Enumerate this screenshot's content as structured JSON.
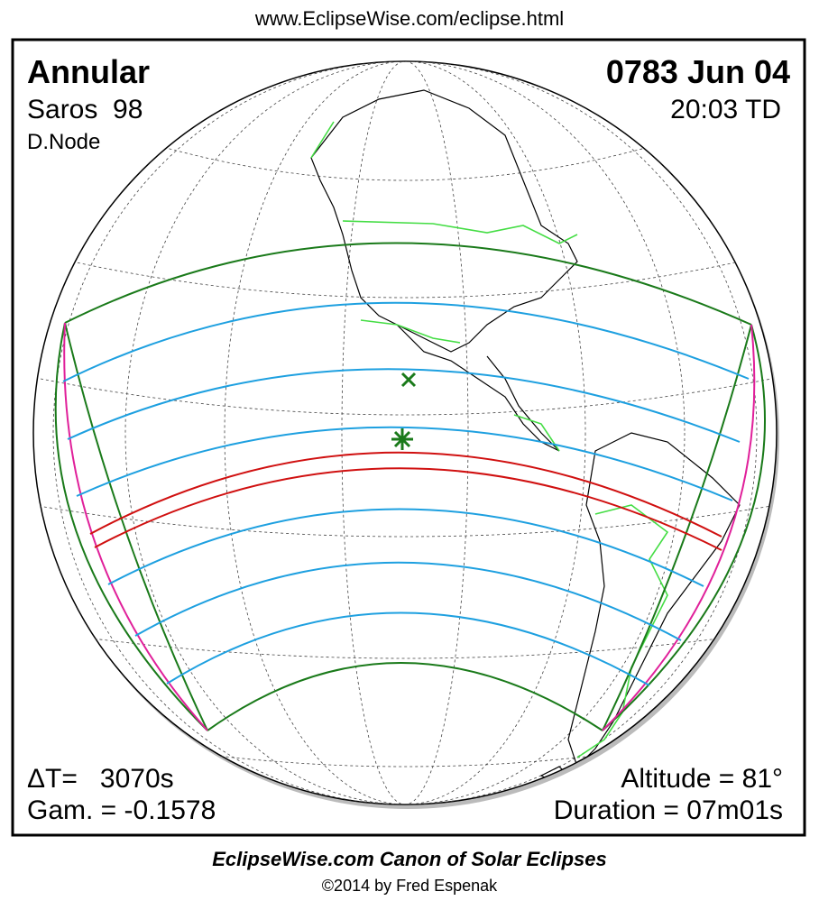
{
  "header": {
    "url": "www.EclipseWise.com/eclipse.html"
  },
  "eclipse": {
    "type": "Annular",
    "saros": "Saros  98",
    "node": "D.Node",
    "date": "0783 Jun 04",
    "time": "20:03 TD",
    "delta_t": "ΔT=   3070s",
    "gamma": "Gam. = -0.1578",
    "altitude": "Altitude = 81°",
    "duration": "Duration = 07m01s"
  },
  "footer": {
    "title": "EclipseWise.com Canon of Solar Eclipses",
    "credit": "©2014 by Fred Espenak"
  }
}
